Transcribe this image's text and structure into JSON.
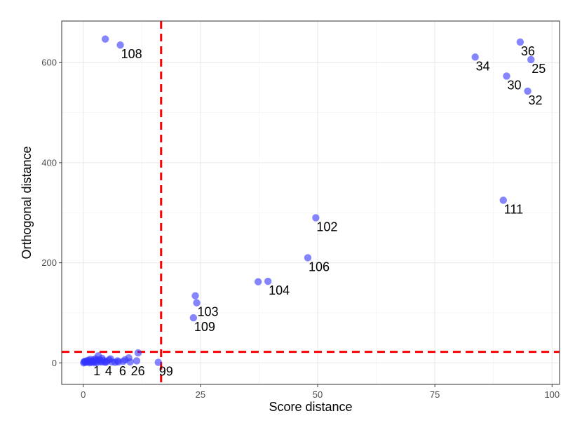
{
  "chart_data": {
    "type": "scatter",
    "title": "",
    "xlabel": "Score distance",
    "ylabel": "Orthogonal distance",
    "xlim": [
      -4.6,
      101.6
    ],
    "ylim": [
      -43,
      683
    ],
    "xticks": [
      0,
      25,
      50,
      75,
      100
    ],
    "yticks": [
      0,
      200,
      400,
      600
    ],
    "x_tick_labels": [
      "0",
      "25",
      "50",
      "75",
      "100"
    ],
    "y_tick_labels": [
      "0",
      "200",
      "400",
      "600"
    ],
    "grid": true,
    "theme": "bw",
    "point_color": "#3333ff",
    "threshold_color": "#ff0000",
    "thresholds": {
      "score_distance": 16.6,
      "orthogonal_distance": 22
    },
    "labeled_points": [
      {
        "label": "108",
        "x": 7.9,
        "y": 635
      },
      {
        "label": "36",
        "x": 93.2,
        "y": 641
      },
      {
        "label": "34",
        "x": 83.6,
        "y": 611
      },
      {
        "label": "25",
        "x": 95.5,
        "y": 606
      },
      {
        "label": "30",
        "x": 90.3,
        "y": 573
      },
      {
        "label": "32",
        "x": 94.8,
        "y": 543
      },
      {
        "label": "111",
        "x": 89.6,
        "y": 325
      },
      {
        "label": "102",
        "x": 49.6,
        "y": 290
      },
      {
        "label": "106",
        "x": 47.9,
        "y": 210
      },
      {
        "label": "104",
        "x": 39.4,
        "y": 163
      },
      {
        "label": "103",
        "x": 24.2,
        "y": 120
      },
      {
        "label": "109",
        "x": 23.5,
        "y": 90
      },
      {
        "label": "1",
        "x": 2.0,
        "y": 2
      },
      {
        "label": "4",
        "x": 4.5,
        "y": 2
      },
      {
        "label": "6",
        "x": 7.5,
        "y": 2
      },
      {
        "label": "26",
        "x": 10.0,
        "y": 2
      },
      {
        "label": "99",
        "x": 16.0,
        "y": 1
      }
    ],
    "other_points": [
      {
        "x": 4.7,
        "y": 647
      },
      {
        "x": 37.3,
        "y": 162
      },
      {
        "x": 23.9,
        "y": 134
      },
      {
        "x": 11.7,
        "y": 20
      },
      {
        "x": 9.7,
        "y": 10
      },
      {
        "x": 11.4,
        "y": 4
      },
      {
        "x": 8.5,
        "y": 3
      },
      {
        "x": 7.3,
        "y": 4
      },
      {
        "x": 6.1,
        "y": 2
      },
      {
        "x": 5.5,
        "y": 6
      },
      {
        "x": 5.0,
        "y": 3
      },
      {
        "x": 4.3,
        "y": 5
      },
      {
        "x": 4.0,
        "y": 9
      },
      {
        "x": 3.7,
        "y": 3
      },
      {
        "x": 3.5,
        "y": 6
      },
      {
        "x": 3.2,
        "y": 14
      },
      {
        "x": 3.0,
        "y": 1
      },
      {
        "x": 2.8,
        "y": 5
      },
      {
        "x": 2.6,
        "y": 8
      },
      {
        "x": 2.4,
        "y": 3
      },
      {
        "x": 2.2,
        "y": 6
      },
      {
        "x": 1.9,
        "y": 4
      },
      {
        "x": 1.7,
        "y": 2
      },
      {
        "x": 1.5,
        "y": 7
      },
      {
        "x": 1.3,
        "y": 3
      },
      {
        "x": 1.1,
        "y": 5
      },
      {
        "x": 0.9,
        "y": 2
      },
      {
        "x": 0.7,
        "y": 4
      },
      {
        "x": 0.5,
        "y": 1
      },
      {
        "x": 0.3,
        "y": 3
      },
      {
        "x": 0.2,
        "y": 2
      },
      {
        "x": 0.1,
        "y": 0
      },
      {
        "x": 6.8,
        "y": 1
      },
      {
        "x": 5.8,
        "y": 8
      },
      {
        "x": 4.8,
        "y": 1
      },
      {
        "x": 3.9,
        "y": 2
      },
      {
        "x": 2.5,
        "y": 0
      },
      {
        "x": 1.4,
        "y": 0
      },
      {
        "x": 8.9,
        "y": 6
      }
    ]
  }
}
